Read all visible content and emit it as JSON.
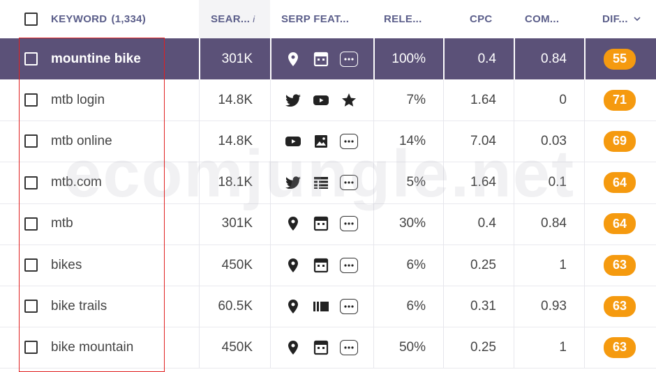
{
  "header": {
    "keyword": "KEYWORD",
    "keyword_count": "(1,334)",
    "search_volume": "SEAR...",
    "info_glyph": "i",
    "serp_features": "SERP FEAT...",
    "relevance": "RELE...",
    "cpc": "CPC",
    "competition": "COM...",
    "difficulty": "DIF..."
  },
  "watermark": "ecomjungle.net",
  "colors": {
    "selected_row": "#5b5178",
    "badge": "#f59a0f",
    "annotation": "#e02020"
  },
  "rows": [
    {
      "keyword": "mountine bike",
      "volume": "301K",
      "icons": [
        "location-pin-icon",
        "web-window-icon",
        "more-icon"
      ],
      "relevance": "100%",
      "cpc": "0.4",
      "competition": "0.84",
      "difficulty": "55",
      "selected": true
    },
    {
      "keyword": "mtb login",
      "volume": "14.8K",
      "icons": [
        "twitter-icon",
        "youtube-icon",
        "star-icon"
      ],
      "relevance": "7%",
      "cpc": "1.64",
      "competition": "0",
      "difficulty": "71"
    },
    {
      "keyword": "mtb online",
      "volume": "14.8K",
      "icons": [
        "youtube-icon",
        "image-icon",
        "more-icon"
      ],
      "relevance": "14%",
      "cpc": "7.04",
      "competition": "0.03",
      "difficulty": "69"
    },
    {
      "keyword": "mtb.com",
      "volume": "18.1K",
      "icons": [
        "twitter-icon",
        "list-icon",
        "more-icon"
      ],
      "relevance": "5%",
      "cpc": "1.64",
      "competition": "0.1",
      "difficulty": "64"
    },
    {
      "keyword": "mtb",
      "volume": "301K",
      "icons": [
        "location-pin-icon",
        "web-window-icon",
        "more-icon"
      ],
      "relevance": "30%",
      "cpc": "0.4",
      "competition": "0.84",
      "difficulty": "64"
    },
    {
      "keyword": "bikes",
      "volume": "450K",
      "icons": [
        "location-pin-icon",
        "web-window-icon",
        "more-icon"
      ],
      "relevance": "6%",
      "cpc": "0.25",
      "competition": "1",
      "difficulty": "63"
    },
    {
      "keyword": "bike trails",
      "volume": "60.5K",
      "icons": [
        "location-pin-icon",
        "carousel-icon",
        "more-icon"
      ],
      "relevance": "6%",
      "cpc": "0.31",
      "competition": "0.93",
      "difficulty": "63"
    },
    {
      "keyword": "bike mountain",
      "volume": "450K",
      "icons": [
        "location-pin-icon",
        "web-window-icon",
        "more-icon"
      ],
      "relevance": "50%",
      "cpc": "0.25",
      "competition": "1",
      "difficulty": "63"
    }
  ]
}
